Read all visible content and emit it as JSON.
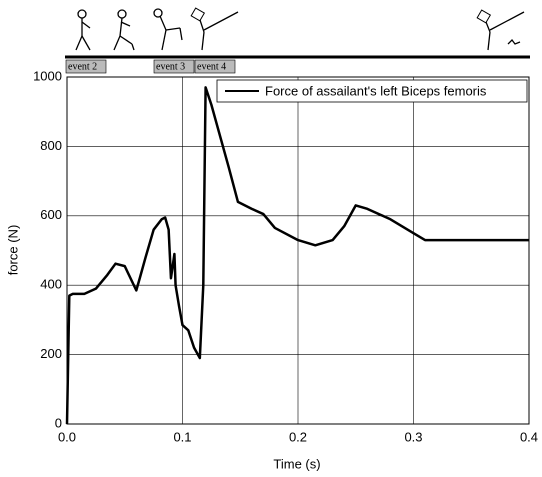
{
  "chart_data": {
    "type": "line",
    "x_label": "Time (s)",
    "y_label": "force (N)",
    "annotations": [
      "event 2",
      "event 3",
      "event 4"
    ],
    "x": [
      0,
      0.002,
      0.005,
      0.015,
      0.025,
      0.035,
      0.042,
      0.05,
      0.055,
      0.06,
      0.063,
      0.068,
      0.075,
      0.082,
      0.085,
      0.088,
      0.09,
      0.093,
      0.094,
      0.097,
      0.1,
      0.105,
      0.11,
      0.115,
      0.118,
      0.12,
      0.125,
      0.13,
      0.14,
      0.148,
      0.16,
      0.17,
      0.18,
      0.2,
      0.215,
      0.23,
      0.24,
      0.25,
      0.26,
      0.28,
      0.3,
      0.31,
      0.4
    ],
    "series": [
      {
        "name": "Force of assailant's left Biceps femoris",
        "color": "#000000",
        "values": [
          0,
          370,
          375,
          375,
          390,
          430,
          462,
          455,
          420,
          385,
          420,
          480,
          560,
          590,
          595,
          560,
          420,
          490,
          400,
          340,
          285,
          270,
          220,
          190,
          400,
          970,
          920,
          860,
          740,
          640,
          620,
          605,
          565,
          530,
          515,
          530,
          570,
          630,
          620,
          590,
          550,
          530,
          530
        ]
      }
    ],
    "xlim": [
      0,
      0.4
    ],
    "xticks": [
      {
        "value": 0,
        "label": "0.0"
      },
      0.1,
      0.2,
      0.3,
      0.4
    ],
    "ylim": [
      0,
      1000
    ],
    "yticks": [
      0,
      200,
      400,
      600,
      800,
      1000
    ],
    "grid": true,
    "legend": "upper right"
  }
}
